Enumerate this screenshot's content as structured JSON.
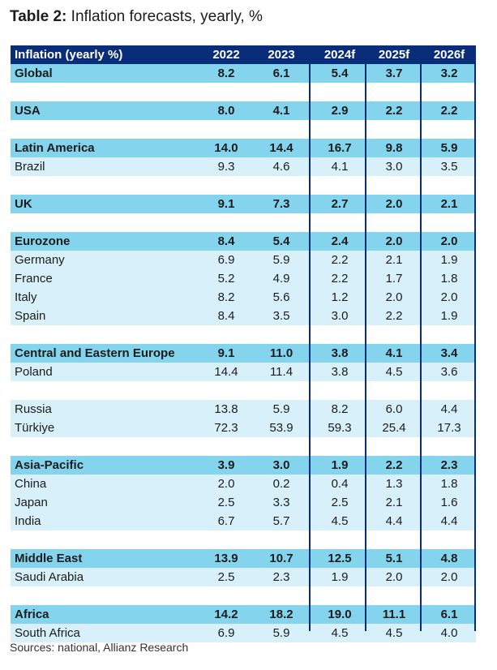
{
  "title": {
    "bold": "Table 2:",
    "rest": " Inflation forecasts, yearly, %"
  },
  "columns": [
    "Inflation (yearly %)",
    "2022",
    "2023",
    "2024f",
    "2025f",
    "2026f"
  ],
  "rows": [
    {
      "name": "Global",
      "kind": "region",
      "values": [
        "8.2",
        "6.1",
        "5.4",
        "3.7",
        "3.2"
      ]
    },
    {
      "name": "USA",
      "kind": "region",
      "values": [
        "8.0",
        "4.1",
        "2.9",
        "2.2",
        "2.2"
      ]
    },
    {
      "name": "Latin America",
      "kind": "region",
      "values": [
        "14.0",
        "14.4",
        "16.7",
        "9.8",
        "5.9"
      ]
    },
    {
      "name": "Brazil",
      "kind": "country",
      "values": [
        "9.3",
        "4.6",
        "4.1",
        "3.0",
        "3.5"
      ]
    },
    {
      "name": "UK",
      "kind": "region",
      "values": [
        "9.1",
        "7.3",
        "2.7",
        "2.0",
        "2.1"
      ]
    },
    {
      "name": "Eurozone",
      "kind": "region",
      "values": [
        "8.4",
        "5.4",
        "2.4",
        "2.0",
        "2.0"
      ]
    },
    {
      "name": "Germany",
      "kind": "country",
      "values": [
        "6.9",
        "5.9",
        "2.2",
        "2.1",
        "1.9"
      ]
    },
    {
      "name": "France",
      "kind": "country",
      "values": [
        "5.2",
        "4.9",
        "2.2",
        "1.7",
        "1.8"
      ]
    },
    {
      "name": "Italy",
      "kind": "country",
      "values": [
        "8.2",
        "5.6",
        "1.2",
        "2.0",
        "2.0"
      ]
    },
    {
      "name": "Spain",
      "kind": "country",
      "values": [
        "8.4",
        "3.5",
        "3.0",
        "2.2",
        "1.9"
      ]
    },
    {
      "name": "Central and Eastern Europe",
      "kind": "region",
      "values": [
        "9.1",
        "11.0",
        "3.8",
        "4.1",
        "3.4"
      ]
    },
    {
      "name": "Poland",
      "kind": "country",
      "values": [
        "14.4",
        "11.4",
        "3.8",
        "4.5",
        "3.6"
      ]
    },
    {
      "name": "Russia",
      "kind": "country",
      "values": [
        "13.8",
        "5.9",
        "8.2",
        "6.0",
        "4.4"
      ]
    },
    {
      "name": "Türkiye",
      "kind": "country",
      "values": [
        "72.3",
        "53.9",
        "59.3",
        "25.4",
        "17.3"
      ]
    },
    {
      "name": "Asia-Pacific",
      "kind": "region",
      "values": [
        "3.9",
        "3.0",
        "1.9",
        "2.2",
        "2.3"
      ]
    },
    {
      "name": "China",
      "kind": "country",
      "values": [
        "2.0",
        "0.2",
        "0.4",
        "1.3",
        "1.8"
      ]
    },
    {
      "name": "Japan",
      "kind": "country",
      "values": [
        "2.5",
        "3.3",
        "2.5",
        "2.1",
        "1.6"
      ]
    },
    {
      "name": "India",
      "kind": "country",
      "values": [
        "6.7",
        "5.7",
        "4.5",
        "4.4",
        "4.4"
      ]
    },
    {
      "name": "Middle East",
      "kind": "region",
      "values": [
        "13.9",
        "10.7",
        "12.5",
        "5.1",
        "4.8"
      ]
    },
    {
      "name": "Saudi Arabia",
      "kind": "country",
      "values": [
        "2.5",
        "2.3",
        "1.9",
        "2.0",
        "2.0"
      ]
    },
    {
      "name": "Africa",
      "kind": "region",
      "values": [
        "14.2",
        "18.2",
        "19.0",
        "11.1",
        "6.1"
      ]
    },
    {
      "name": "South Africa",
      "kind": "country",
      "values": [
        "6.9",
        "5.9",
        "4.5",
        "4.5",
        "4.0"
      ]
    }
  ],
  "source": "Sources: national, Allianz Research",
  "colors": {
    "header": "#0a2d79",
    "region": "#84d4ee",
    "country": "#d8f0fa",
    "divider": "#0a2d79"
  }
}
